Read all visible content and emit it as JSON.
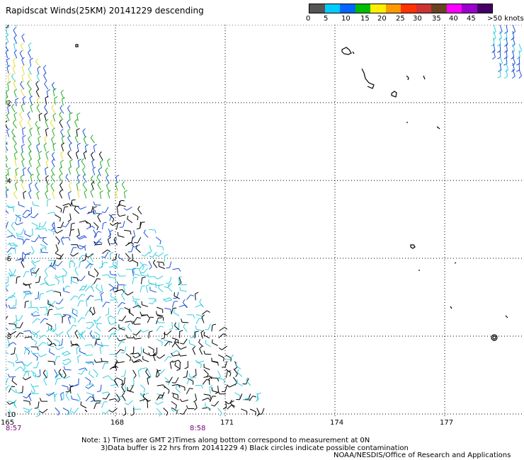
{
  "title": "Rapidscat Winds(25KM) 20141229 descending",
  "legend": {
    "colors": [
      "#555555",
      "#00ccff",
      "#0066ff",
      "#00bb00",
      "#ffee00",
      "#ff9900",
      "#ff3300",
      "#cc3333",
      "#664422",
      "#ff00ff",
      "#9900cc",
      "#440066"
    ],
    "labels": [
      "0",
      "5",
      "10",
      "15",
      "20",
      "25",
      "30",
      "35",
      "40",
      "45",
      ">50 knots"
    ]
  },
  "axes": {
    "lat_labels": [
      "0",
      "-2",
      "-4",
      "-6",
      "-8",
      "-10"
    ],
    "lon_labels": [
      "165",
      "168",
      "171",
      "174",
      "177"
    ],
    "time_labels": [
      "8:57",
      "8:58"
    ]
  },
  "notes": {
    "line1": "Note: 1) Times are GMT 2)Times along bottom correspond to measurement at 0N",
    "line2": "3)Data buffer is 22 hrs from 20141229 4) Black circles indicate possible contamination"
  },
  "credit": "NOAA/NESDIS/Office of Research and Applications",
  "wind_colors": {
    "black": "#000000",
    "cyan": "#33ccdd",
    "blue": "#1a4fd6",
    "green": "#22aa22",
    "yellow": "#e6dd33"
  }
}
